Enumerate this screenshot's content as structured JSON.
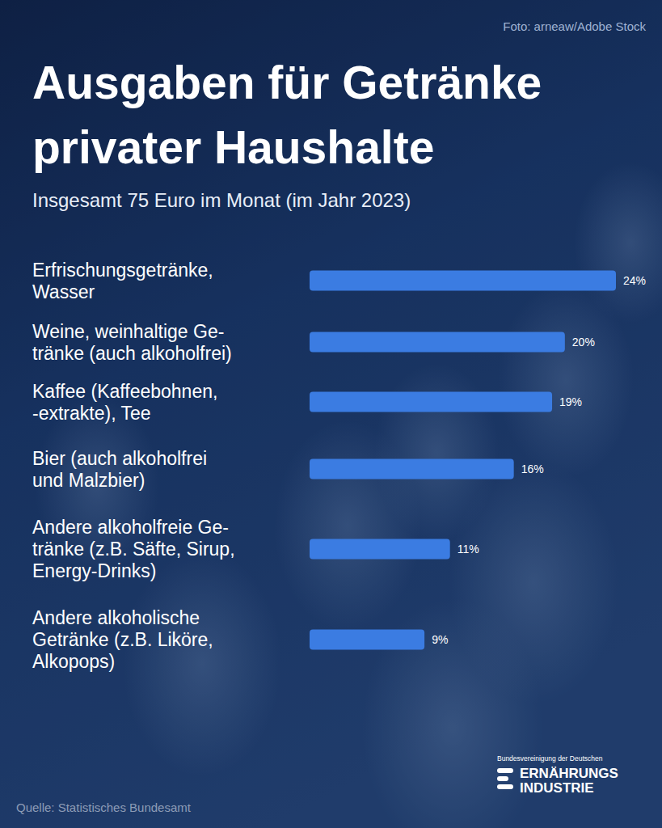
{
  "chart_data": {
    "type": "bar",
    "title": "Ausgaben für Getränke\nprivater Haushalte",
    "subtitle": "Insgesamt 75 Euro im Monat (im Jahr 2023)",
    "categories": [
      "Erfrischungsgetränke,\nWasser",
      "Weine, weinhaltige Ge-\ntränke (auch alkoholfrei)",
      "Kaffee (Kaffeebohnen,\n-extrakte), Tee",
      "Bier (auch alkoholfrei\nund Malzbier)",
      "Andere alkoholfreie Ge-\ntränke (z.B. Säfte, Sirup,\nEnergy-Drinks)",
      "Andere alkoholische\nGetränke (z.B. Liköre,\nAlkopops)"
    ],
    "values": [
      24,
      20,
      19,
      16,
      11,
      9
    ],
    "value_labels": [
      "24%",
      "20%",
      "19%",
      "16%",
      "11%",
      "9%"
    ],
    "color": "#3b7ce2",
    "xlim": [
      0,
      24
    ],
    "orientation": "horizontal",
    "data_labels": true,
    "tick_labels": "y",
    "grid": false,
    "credit": "Foto: arneaw/Adobe Stock",
    "source": "Quelle: Statistisches Bundesamt",
    "logo": [
      "Bundesvereinigung der Deutschen",
      "ERNÄHRUNGS",
      "INDUSTRIE"
    ]
  }
}
